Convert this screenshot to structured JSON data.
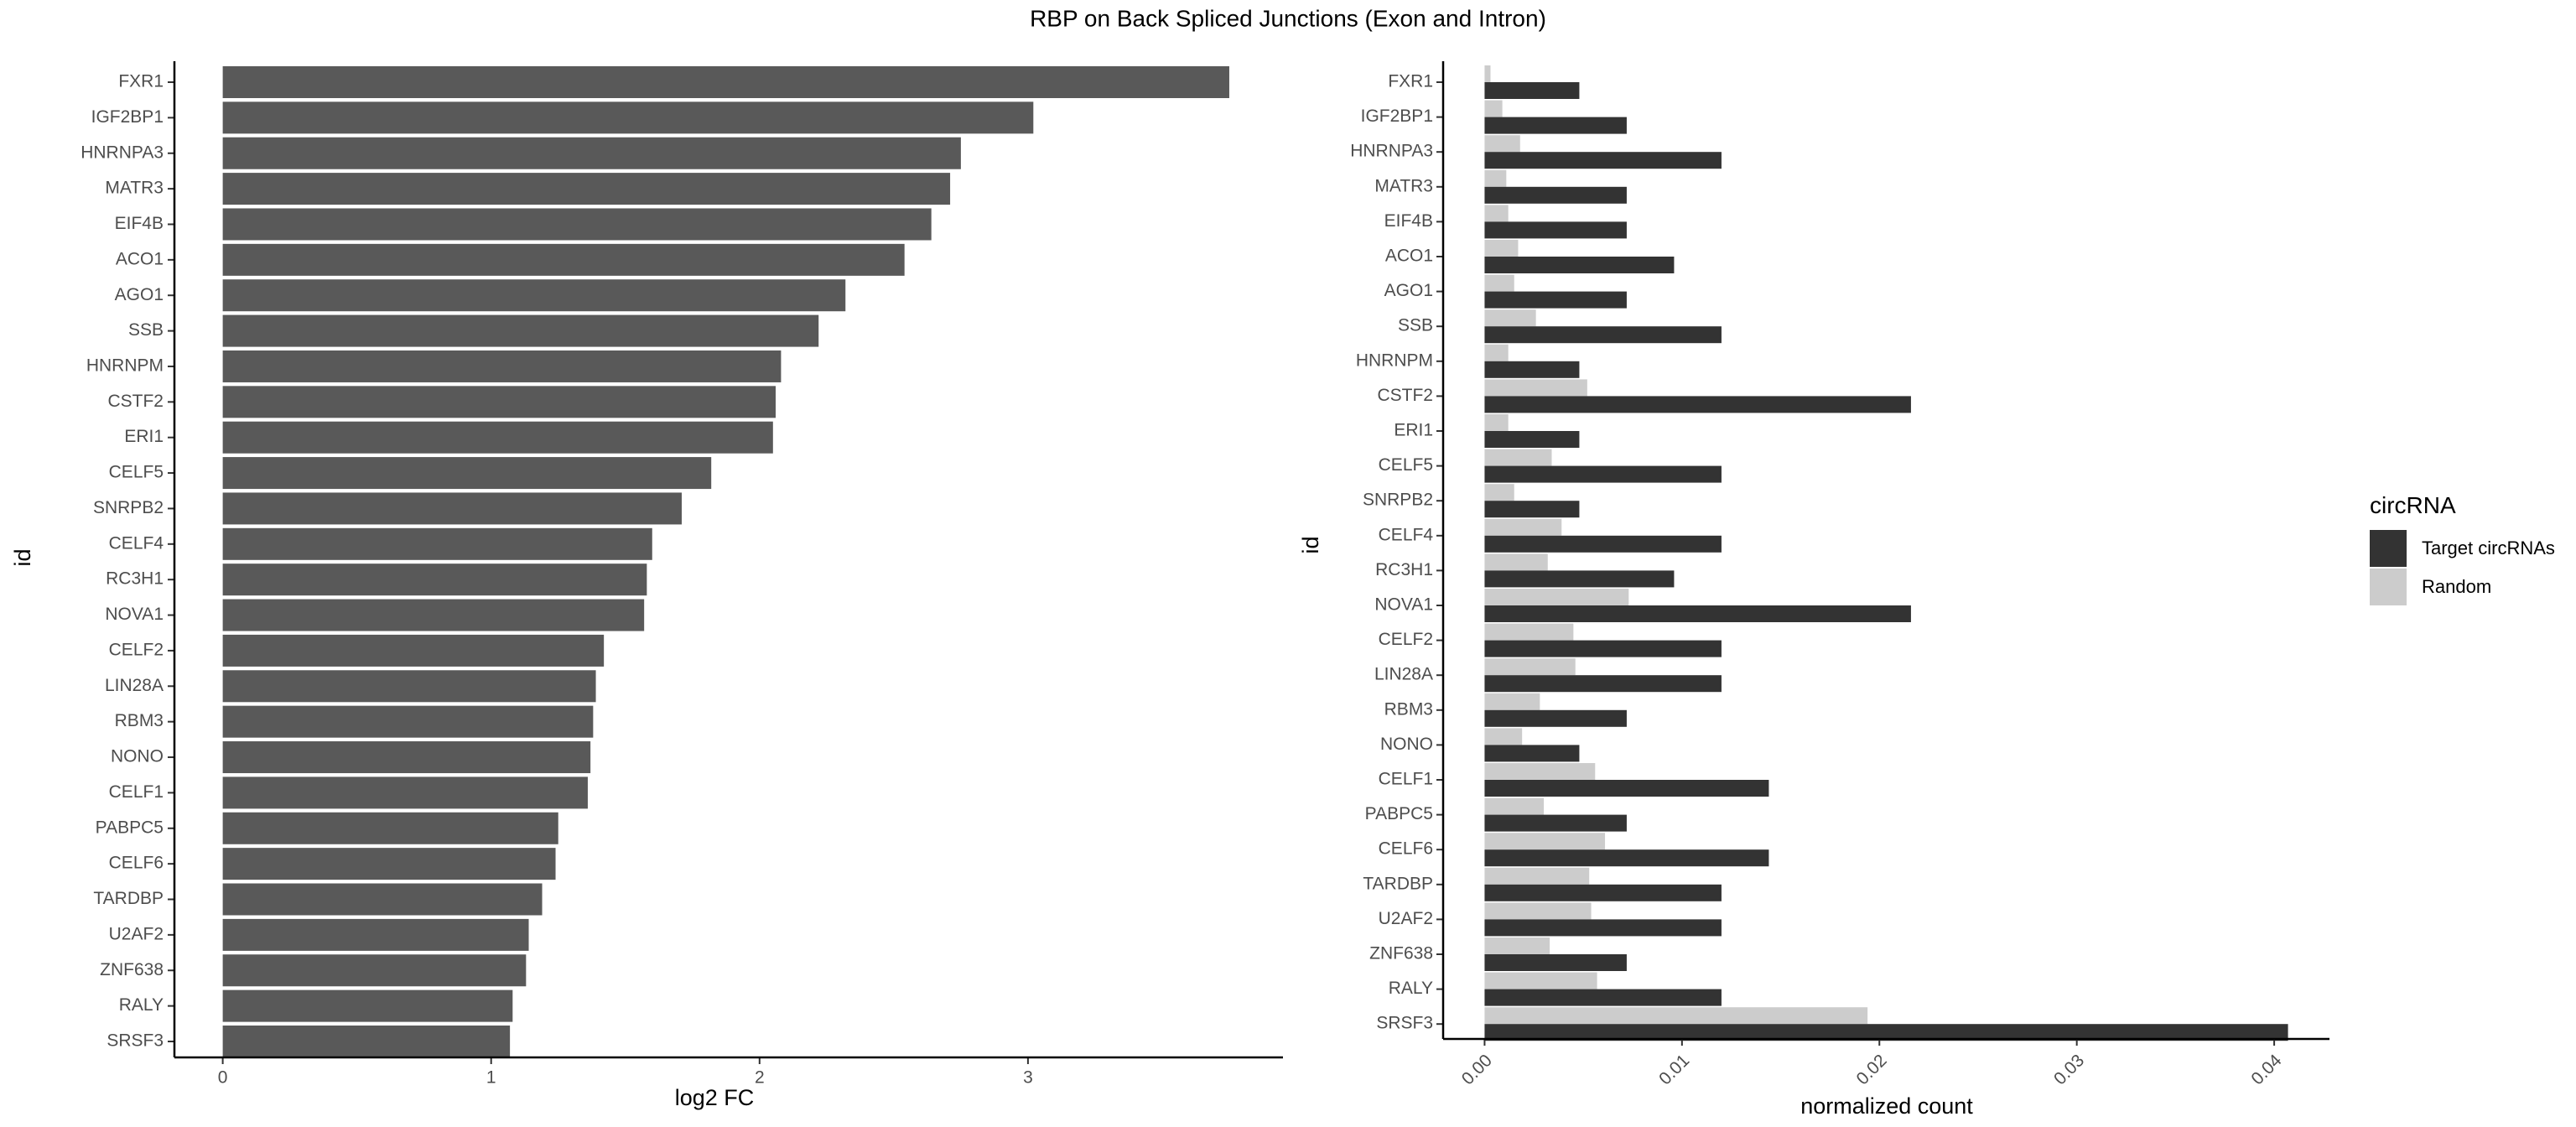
{
  "figure": {
    "title": "RBP on Back Spliced Junctions (Exon and Intron)"
  },
  "chart_data": [
    {
      "type": "bar",
      "orientation": "horizontal",
      "title": "",
      "xlabel": "log2 FC",
      "ylabel": "id",
      "xlim": [
        -0.18,
        3.95
      ],
      "xticks": [
        0,
        1,
        2,
        3
      ],
      "grid": false,
      "bar_color": "#595959",
      "categories": [
        "FXR1",
        "IGF2BP1",
        "HNRNPA3",
        "MATR3",
        "EIF4B",
        "ACO1",
        "AGO1",
        "SSB",
        "HNRNPM",
        "CSTF2",
        "ERI1",
        "CELF5",
        "SNRPB2",
        "CELF4",
        "RC3H1",
        "NOVA1",
        "CELF2",
        "LIN28A",
        "RBM3",
        "NONO",
        "CELF1",
        "PABPC5",
        "CELF6",
        "TARDBP",
        "U2AF2",
        "ZNF638",
        "RALY",
        "SRSF3"
      ],
      "values": [
        3.75,
        3.02,
        2.75,
        2.71,
        2.64,
        2.54,
        2.32,
        2.22,
        2.08,
        2.06,
        2.05,
        1.82,
        1.71,
        1.6,
        1.58,
        1.57,
        1.42,
        1.39,
        1.38,
        1.37,
        1.36,
        1.25,
        1.24,
        1.19,
        1.14,
        1.13,
        1.08,
        1.07
      ]
    },
    {
      "type": "bar",
      "orientation": "horizontal",
      "title": "",
      "xlabel": "normalized count",
      "ylabel": "id",
      "xlim": [
        -0.0021,
        0.0428
      ],
      "xticks": [
        0.0,
        0.01,
        0.02,
        0.03,
        0.04
      ],
      "xtick_labels": [
        "0.00",
        "0.01",
        "0.02",
        "0.03",
        "0.04"
      ],
      "grid": false,
      "categories": [
        "FXR1",
        "IGF2BP1",
        "HNRNPA3",
        "MATR3",
        "EIF4B",
        "ACO1",
        "AGO1",
        "SSB",
        "HNRNPM",
        "CSTF2",
        "ERI1",
        "CELF5",
        "SNRPB2",
        "CELF4",
        "RC3H1",
        "NOVA1",
        "CELF2",
        "LIN28A",
        "RBM3",
        "NONO",
        "CELF1",
        "PABPC5",
        "CELF6",
        "TARDBP",
        "U2AF2",
        "ZNF638",
        "RALY",
        "SRSF3"
      ],
      "series": [
        {
          "name": "Target circRNAs",
          "color": "#333333",
          "values": [
            0.0048,
            0.0072,
            0.012,
            0.0072,
            0.0072,
            0.0096,
            0.0072,
            0.012,
            0.0048,
            0.0216,
            0.0048,
            0.012,
            0.0048,
            0.012,
            0.0096,
            0.0216,
            0.012,
            0.012,
            0.0072,
            0.0048,
            0.0144,
            0.0072,
            0.0144,
            0.012,
            0.012,
            0.0072,
            0.012,
            0.0407
          ]
        },
        {
          "name": "Random",
          "color": "#cccccc",
          "values": [
            0.0003,
            0.0009,
            0.0018,
            0.0011,
            0.0012,
            0.0017,
            0.0015,
            0.0026,
            0.0012,
            0.0052,
            0.0012,
            0.0034,
            0.0015,
            0.0039,
            0.0032,
            0.0073,
            0.0045,
            0.0046,
            0.0028,
            0.0019,
            0.0056,
            0.003,
            0.0061,
            0.0053,
            0.0054,
            0.0033,
            0.0057,
            0.0194
          ]
        }
      ],
      "legend": {
        "title": "circRNA",
        "placement": "right"
      }
    }
  ]
}
